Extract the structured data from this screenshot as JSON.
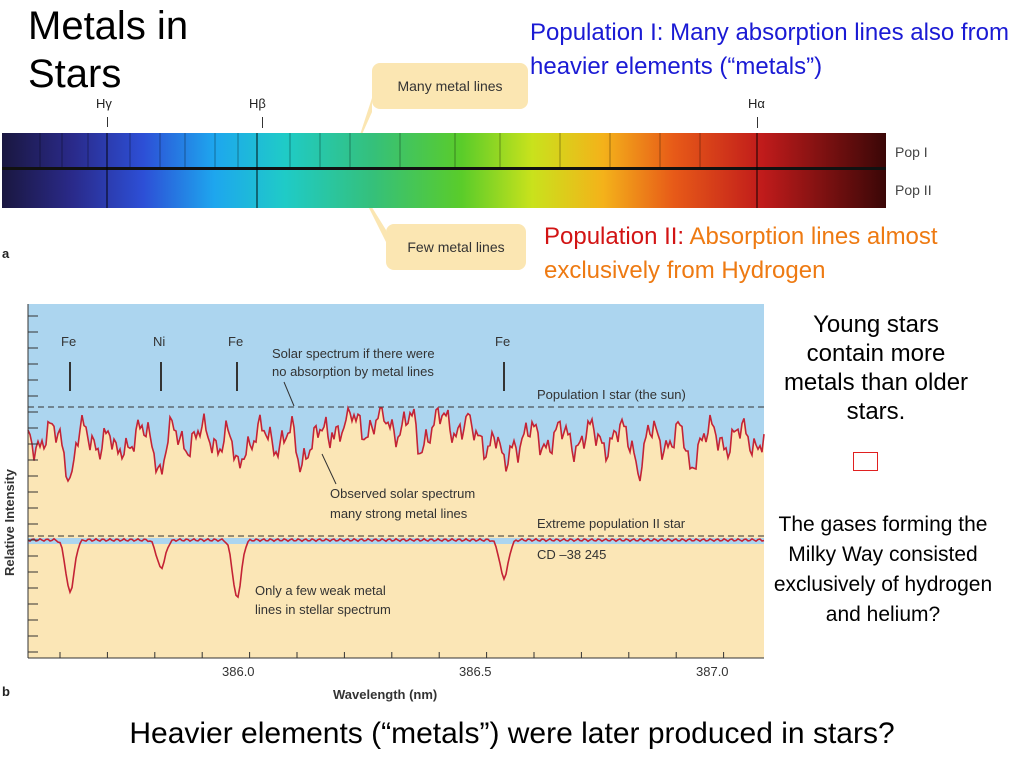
{
  "slide": {
    "title": "Metals in Stars",
    "pop1": {
      "label": "Population I:",
      "text": " Many absorption lines also from heavier elements (“metals”)"
    },
    "pop2": {
      "label": "Population II:",
      "text": " Absorption lines almost exclusively from Hydrogen"
    },
    "callout_many": "Many metal lines",
    "callout_few": "Few metal lines",
    "h_gamma": "Hγ",
    "h_beta": "Hβ",
    "h_alpha": "Hα",
    "pop_i_label": "Pop I",
    "pop_ii_label": "Pop II",
    "panel_a": "a",
    "panel_b": "b",
    "side_young": "Young stars contain more metals than older stars.",
    "side_gases": "The gases forming the Milky Way consisted exclusively of hydrogen and helium?",
    "question": "Heavier elements (“metals”) were later produced in stars?"
  },
  "graph": {
    "ylabel": "Relative Intensity",
    "xlabel": "Wavelength (nm)",
    "xticks": [
      "386.0",
      "386.5",
      "387.0"
    ],
    "elements": [
      "Fe",
      "Ni",
      "Fe",
      "Fe"
    ],
    "annot_no_absorption": [
      "Solar spectrum if there were",
      "no absorption by metal lines"
    ],
    "annot_pop1": "Population I star (the sun)",
    "annot_observed": [
      "Observed solar spectrum",
      "many strong metal lines"
    ],
    "annot_extreme": "Extreme population II star",
    "annot_cd": "CD –38 245",
    "annot_weak": [
      "Only a few weak metal",
      "lines in stellar spectrum"
    ],
    "colors": {
      "sky": "#acd5ef",
      "sand": "#fbe6b6",
      "line": "#c42335"
    }
  }
}
